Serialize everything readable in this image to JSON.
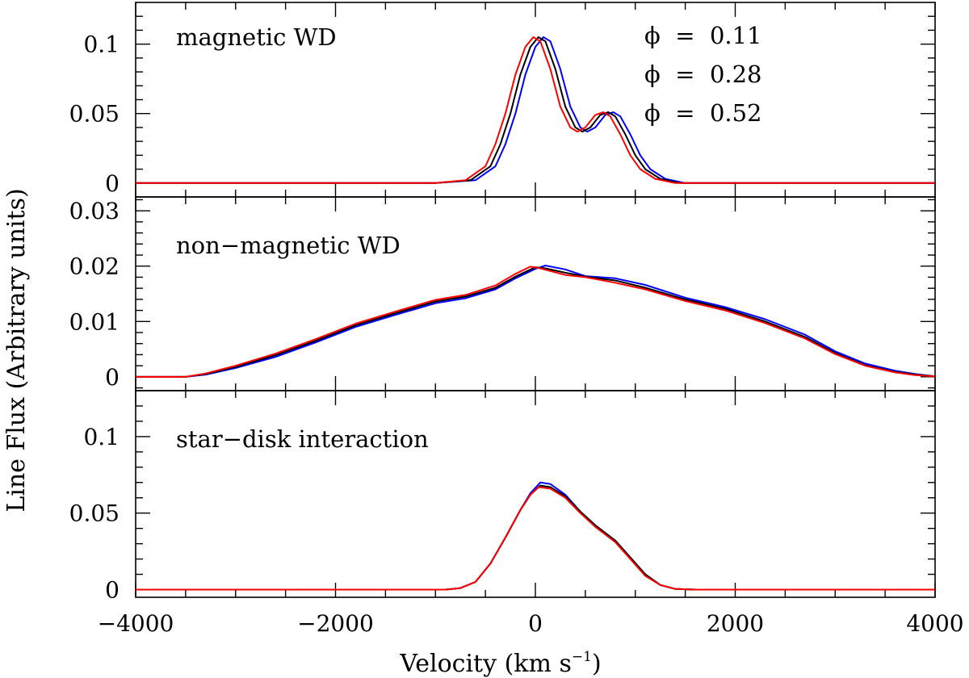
{
  "figure": {
    "xlabel_main": "Velocity (km s",
    "xlabel_sup": "−1",
    "xlabel_close": ")",
    "ylabel": "Line Flux (Arbitrary units)"
  },
  "chart_data": [
    {
      "type": "line",
      "title": "magnetic WD",
      "xlim": [
        -4000,
        4000
      ],
      "ylim": [
        -0.01,
        0.13
      ],
      "yticks": [
        0,
        0.05,
        0.1
      ],
      "ytick_labels": [
        "0",
        "0.05",
        "0.1"
      ],
      "xticks": [
        -4000,
        -2000,
        0,
        2000,
        4000
      ],
      "xtick_labels": [
        "−4000",
        "−2000",
        "0",
        "2000",
        "4000"
      ],
      "legend": [
        {
          "label": "ϕ  =  0.11",
          "color": "#0000ff"
        },
        {
          "label": "ϕ  =  0.28",
          "color": "#000000"
        },
        {
          "label": "ϕ  =  0.52",
          "color": "#ff0000"
        }
      ],
      "series": [
        {
          "name": "ϕ = 0.11",
          "color": "#0000ff",
          "points": [
            [
              -4000,
              0
            ],
            [
              -1000,
              0
            ],
            [
              -600,
              0.002
            ],
            [
              -400,
              0.012
            ],
            [
              -300,
              0.028
            ],
            [
              -200,
              0.05
            ],
            [
              -100,
              0.078
            ],
            [
              0,
              0.098
            ],
            [
              80,
              0.105
            ],
            [
              150,
              0.102
            ],
            [
              250,
              0.082
            ],
            [
              350,
              0.055
            ],
            [
              450,
              0.04
            ],
            [
              520,
              0.037
            ],
            [
              600,
              0.04
            ],
            [
              700,
              0.049
            ],
            [
              780,
              0.051
            ],
            [
              850,
              0.048
            ],
            [
              950,
              0.035
            ],
            [
              1050,
              0.02
            ],
            [
              1150,
              0.01
            ],
            [
              1300,
              0.003
            ],
            [
              1500,
              0
            ],
            [
              4000,
              0
            ]
          ]
        },
        {
          "name": "ϕ = 0.28",
          "color": "#000000",
          "points": [
            [
              -4000,
              0
            ],
            [
              -1000,
              0
            ],
            [
              -650,
              0.002
            ],
            [
              -450,
              0.012
            ],
            [
              -350,
              0.028
            ],
            [
              -250,
              0.05
            ],
            [
              -150,
              0.078
            ],
            [
              -50,
              0.098
            ],
            [
              30,
              0.105
            ],
            [
              100,
              0.102
            ],
            [
              200,
              0.082
            ],
            [
              300,
              0.055
            ],
            [
              400,
              0.04
            ],
            [
              470,
              0.037
            ],
            [
              550,
              0.04
            ],
            [
              650,
              0.049
            ],
            [
              730,
              0.051
            ],
            [
              800,
              0.048
            ],
            [
              900,
              0.035
            ],
            [
              1000,
              0.02
            ],
            [
              1100,
              0.01
            ],
            [
              1250,
              0.003
            ],
            [
              1450,
              0
            ],
            [
              4000,
              0
            ]
          ]
        },
        {
          "name": "ϕ = 0.52",
          "color": "#ff0000",
          "points": [
            [
              -4000,
              0
            ],
            [
              -1000,
              0
            ],
            [
              -700,
              0.002
            ],
            [
              -500,
              0.012
            ],
            [
              -400,
              0.028
            ],
            [
              -300,
              0.05
            ],
            [
              -200,
              0.078
            ],
            [
              -100,
              0.098
            ],
            [
              -20,
              0.105
            ],
            [
              50,
              0.102
            ],
            [
              150,
              0.082
            ],
            [
              250,
              0.055
            ],
            [
              350,
              0.04
            ],
            [
              420,
              0.037
            ],
            [
              500,
              0.04
            ],
            [
              600,
              0.049
            ],
            [
              680,
              0.051
            ],
            [
              750,
              0.048
            ],
            [
              850,
              0.035
            ],
            [
              950,
              0.02
            ],
            [
              1050,
              0.01
            ],
            [
              1200,
              0.003
            ],
            [
              1400,
              0
            ],
            [
              4000,
              0
            ]
          ]
        }
      ]
    },
    {
      "type": "line",
      "title": "non−magnetic WD",
      "xlim": [
        -4000,
        4000
      ],
      "ylim": [
        -0.0025,
        0.0325
      ],
      "yticks": [
        0,
        0.01,
        0.02,
        0.03
      ],
      "ytick_labels": [
        "0",
        "0.01",
        "0.02",
        "0.03"
      ],
      "xticks": [
        -4000,
        -2000,
        0,
        2000,
        4000
      ],
      "xtick_labels": [
        "−4000",
        "−2000",
        "0",
        "2000",
        "4000"
      ],
      "series": [
        {
          "name": "ϕ = 0.11",
          "color": "#0000ff",
          "points": [
            [
              -4000,
              0
            ],
            [
              -3500,
              0
            ],
            [
              -3300,
              0.0004
            ],
            [
              -3000,
              0.0016
            ],
            [
              -2600,
              0.0036
            ],
            [
              -2200,
              0.0062
            ],
            [
              -1800,
              0.009
            ],
            [
              -1400,
              0.0112
            ],
            [
              -1000,
              0.0133
            ],
            [
              -700,
              0.0142
            ],
            [
              -400,
              0.0158
            ],
            [
              -200,
              0.0178
            ],
            [
              0,
              0.0195
            ],
            [
              100,
              0.0201
            ],
            [
              300,
              0.0194
            ],
            [
              500,
              0.0182
            ],
            [
              800,
              0.0178
            ],
            [
              1100,
              0.0166
            ],
            [
              1500,
              0.0143
            ],
            [
              1900,
              0.0126
            ],
            [
              2300,
              0.0104
            ],
            [
              2700,
              0.0076
            ],
            [
              3000,
              0.0046
            ],
            [
              3300,
              0.0024
            ],
            [
              3600,
              0.0011
            ],
            [
              3800,
              0.0005
            ],
            [
              4000,
              0.0001
            ]
          ]
        },
        {
          "name": "ϕ = 0.28",
          "color": "#000000",
          "points": [
            [
              -4000,
              0
            ],
            [
              -3500,
              0
            ],
            [
              -3300,
              0.0005
            ],
            [
              -3000,
              0.0018
            ],
            [
              -2600,
              0.0039
            ],
            [
              -2200,
              0.0065
            ],
            [
              -1800,
              0.0093
            ],
            [
              -1400,
              0.0115
            ],
            [
              -1000,
              0.0136
            ],
            [
              -700,
              0.0145
            ],
            [
              -400,
              0.0161
            ],
            [
              -200,
              0.0181
            ],
            [
              0,
              0.0198
            ],
            [
              100,
              0.0196
            ],
            [
              300,
              0.0188
            ],
            [
              500,
              0.0181
            ],
            [
              800,
              0.0174
            ],
            [
              1100,
              0.0161
            ],
            [
              1500,
              0.014
            ],
            [
              1900,
              0.0123
            ],
            [
              2300,
              0.01
            ],
            [
              2700,
              0.0072
            ],
            [
              3000,
              0.0043
            ],
            [
              3300,
              0.0021
            ],
            [
              3600,
              0.0009
            ],
            [
              3800,
              0.0004
            ],
            [
              4000,
              0.0001
            ]
          ]
        },
        {
          "name": "ϕ = 0.52",
          "color": "#ff0000",
          "points": [
            [
              -4000,
              0
            ],
            [
              -3500,
              0
            ],
            [
              -3300,
              0.0006
            ],
            [
              -3000,
              0.002
            ],
            [
              -2600,
              0.0042
            ],
            [
              -2200,
              0.0068
            ],
            [
              -1800,
              0.0096
            ],
            [
              -1400,
              0.0118
            ],
            [
              -1000,
              0.0139
            ],
            [
              -700,
              0.0148
            ],
            [
              -400,
              0.0165
            ],
            [
              -200,
              0.0186
            ],
            [
              -50,
              0.0199
            ],
            [
              50,
              0.0196
            ],
            [
              300,
              0.0184
            ],
            [
              500,
              0.018
            ],
            [
              800,
              0.017
            ],
            [
              1100,
              0.0158
            ],
            [
              1500,
              0.0137
            ],
            [
              1900,
              0.012
            ],
            [
              2300,
              0.0097
            ],
            [
              2700,
              0.0069
            ],
            [
              3000,
              0.0041
            ],
            [
              3300,
              0.002
            ],
            [
              3600,
              0.0008
            ],
            [
              3800,
              0.0003
            ],
            [
              4000,
              0.0001
            ]
          ]
        }
      ]
    },
    {
      "type": "line",
      "title": "star−disk interaction",
      "xlim": [
        -4000,
        4000
      ],
      "ylim": [
        -0.005,
        0.13
      ],
      "yticks": [
        0,
        0.05,
        0.1
      ],
      "ytick_labels": [
        "0",
        "0.05",
        "0.1"
      ],
      "xticks": [
        -4000,
        -2000,
        0,
        2000,
        4000
      ],
      "xtick_labels": [
        "−4000",
        "−2000",
        "0",
        "2000",
        "4000"
      ],
      "series": [
        {
          "name": "ϕ = 0.11",
          "color": "#0000ff",
          "points": [
            [
              -4000,
              0
            ],
            [
              -900,
              0
            ],
            [
              -750,
              0.001
            ],
            [
              -600,
              0.005
            ],
            [
              -450,
              0.017
            ],
            [
              -300,
              0.034
            ],
            [
              -150,
              0.052
            ],
            [
              -50,
              0.063
            ],
            [
              50,
              0.07
            ],
            [
              150,
              0.069
            ],
            [
              300,
              0.062
            ],
            [
              450,
              0.051
            ],
            [
              600,
              0.042
            ],
            [
              800,
              0.032
            ],
            [
              950,
              0.021
            ],
            [
              1100,
              0.01
            ],
            [
              1250,
              0.003
            ],
            [
              1400,
              0.0005
            ],
            [
              1600,
              0
            ],
            [
              4000,
              0
            ]
          ]
        },
        {
          "name": "ϕ = 0.28",
          "color": "#000000",
          "points": [
            [
              -4000,
              0
            ],
            [
              -900,
              0
            ],
            [
              -750,
              0.001
            ],
            [
              -600,
              0.005
            ],
            [
              -450,
              0.017
            ],
            [
              -300,
              0.034
            ],
            [
              -150,
              0.052
            ],
            [
              -50,
              0.062
            ],
            [
              50,
              0.068
            ],
            [
              150,
              0.067
            ],
            [
              300,
              0.061
            ],
            [
              450,
              0.051
            ],
            [
              600,
              0.042
            ],
            [
              800,
              0.032
            ],
            [
              950,
              0.021
            ],
            [
              1100,
              0.01
            ],
            [
              1250,
              0.003
            ],
            [
              1400,
              0.0005
            ],
            [
              1600,
              0
            ],
            [
              4000,
              0
            ]
          ]
        },
        {
          "name": "ϕ = 0.52",
          "color": "#ff0000",
          "points": [
            [
              -4000,
              0
            ],
            [
              -900,
              0
            ],
            [
              -750,
              0.001
            ],
            [
              -600,
              0.005
            ],
            [
              -450,
              0.017
            ],
            [
              -300,
              0.034
            ],
            [
              -150,
              0.052
            ],
            [
              -50,
              0.062
            ],
            [
              30,
              0.067
            ],
            [
              150,
              0.066
            ],
            [
              300,
              0.06
            ],
            [
              450,
              0.05
            ],
            [
              600,
              0.041
            ],
            [
              800,
              0.031
            ],
            [
              950,
              0.02
            ],
            [
              1100,
              0.009
            ],
            [
              1250,
              0.003
            ],
            [
              1400,
              0.0005
            ],
            [
              1600,
              0
            ],
            [
              4000,
              0
            ]
          ]
        }
      ]
    }
  ]
}
